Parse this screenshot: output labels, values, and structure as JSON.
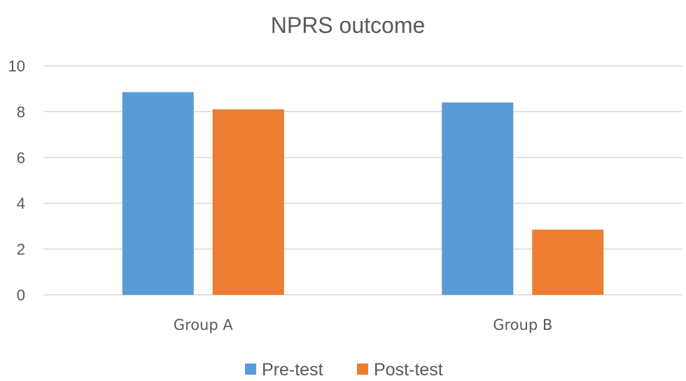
{
  "chart_data": {
    "type": "bar",
    "title": "NPRS outcome",
    "categories": [
      "Group A",
      "Group B"
    ],
    "series": [
      {
        "name": "Pre-test",
        "values": [
          8.85,
          8.4
        ],
        "color": "#5b9bd5"
      },
      {
        "name": "Post-test",
        "values": [
          8.1,
          2.85
        ],
        "color": "#ed7d31"
      }
    ],
    "ylim": [
      0,
      10
    ],
    "yticks": [
      "0",
      "2",
      "4",
      "6",
      "8",
      "10"
    ],
    "grid": true,
    "legend_position": "bottom"
  }
}
